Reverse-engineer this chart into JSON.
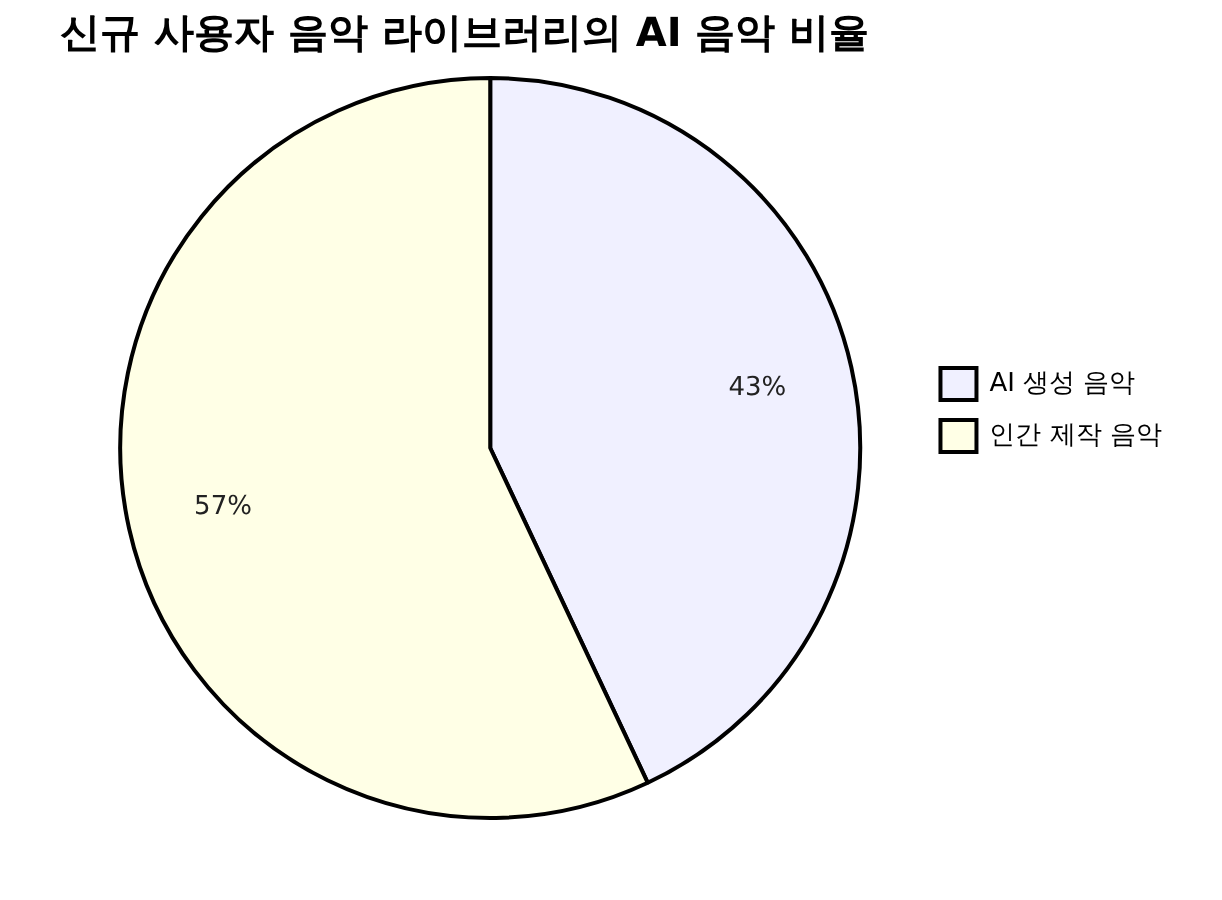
{
  "chart_data": {
    "type": "pie",
    "title": "신규 사용자 음악 라이브러리의 AI 음악 비율",
    "categories": [
      "AI 생성 음악",
      "인간 제작 음악"
    ],
    "values": [
      43,
      57
    ],
    "colors": [
      "#f0f0ff",
      "#ffffe6"
    ],
    "value_labels": [
      "43%",
      "57%"
    ],
    "legend": "right"
  }
}
